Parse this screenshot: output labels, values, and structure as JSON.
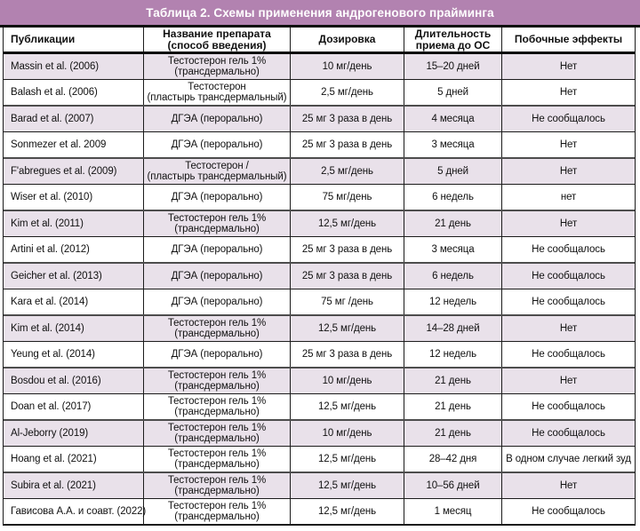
{
  "title": "Таблица 2. Схемы применения андрогенового прайминга",
  "colors": {
    "title_bar_background": "#b282b0",
    "title_text": "#ffffff",
    "shaded_row_background": "#e9e1ea",
    "plain_row_background": "#ffffff",
    "border_dark": "#1c1c1c",
    "border_medium": "#4d4d4d"
  },
  "table": {
    "columns": [
      {
        "line1": "Публикации",
        "line2": ""
      },
      {
        "line1": "Название препарата",
        "line2": "(способ введения)"
      },
      {
        "line1": "Дозировка",
        "line2": ""
      },
      {
        "line1": "Длительность",
        "line2": "приема до ОС"
      },
      {
        "line1": "Побочные эффекты",
        "line2": ""
      }
    ],
    "rows": [
      {
        "publication": "Massin et al. (2006)",
        "drug_line1": "Тестостерон гель 1%",
        "drug_line2": "(трансдермально)",
        "dosage": "10 мг/день",
        "duration": "15–20 дней",
        "side_effects": "Нет"
      },
      {
        "publication": "Balash et al. (2006)",
        "drug_line1": "Тестостерон",
        "drug_line2": "(пластырь трансдермальный)",
        "dosage": "2,5 мг/день",
        "duration": "5 дней",
        "side_effects": "Нет"
      },
      {
        "publication": "Barad et al. (2007)",
        "drug_line1": "ДГЭА (перорально)",
        "drug_line2": "",
        "dosage": "25 мг 3 раза в день",
        "duration": "4 месяца",
        "side_effects": "Не сообщалось"
      },
      {
        "publication": "Sonmezer et al. 2009",
        "drug_line1": "ДГЭА (перорально)",
        "drug_line2": "",
        "dosage": "25 мг 3 раза в день",
        "duration": "3 месяца",
        "side_effects": "Нет"
      },
      {
        "publication": "F'abregues et al. (2009)",
        "drug_line1": "Тестостерон /",
        "drug_line2": "(пластырь трансдермальный)",
        "dosage": "2,5 мг/день",
        "duration": "5 дней",
        "side_effects": "Нет"
      },
      {
        "publication": "Wiser et al. (2010)",
        "drug_line1": "ДГЭА (перорально)",
        "drug_line2": "",
        "dosage": "75 мг/день",
        "duration": "6 недель",
        "side_effects": "нет"
      },
      {
        "publication": "Kim et al. (2011)",
        "drug_line1": "Тестостерон гель 1%",
        "drug_line2": "(трансдермально)",
        "dosage": "12,5 мг/день",
        "duration": "21 день",
        "side_effects": "Нет"
      },
      {
        "publication": "Artini et al. (2012)",
        "drug_line1": "ДГЭА (перорально)",
        "drug_line2": "",
        "dosage": "25 мг 3 раза в день",
        "duration": "3 месяца",
        "side_effects": "Не сообщалось"
      },
      {
        "publication": "Geicher et al. (2013)",
        "drug_line1": "ДГЭА (перорально)",
        "drug_line2": "",
        "dosage": "25 мг 3 раза в день",
        "duration": "6 недель",
        "side_effects": "Не сообщалось"
      },
      {
        "publication": "Kara et al. (2014)",
        "drug_line1": "ДГЭА (перорально)",
        "drug_line2": "",
        "dosage": "75 мг /день",
        "duration": "12 недель",
        "side_effects": "Не сообщалось"
      },
      {
        "publication": "Kim et al. (2014)",
        "drug_line1": "Тестостерон гель 1%",
        "drug_line2": "(трансдермально)",
        "dosage": "12,5 мг/день",
        "duration": "14–28 дней",
        "side_effects": "Нет"
      },
      {
        "publication": "Yeung et al. (2014)",
        "drug_line1": "ДГЭА (перорально)",
        "drug_line2": "",
        "dosage": "25 мг 3 раза в день",
        "duration": "12 недель",
        "side_effects": "Не сообщалось"
      },
      {
        "publication": "Bosdou et al. (2016)",
        "drug_line1": "Тестостерон гель 1%",
        "drug_line2": "(трансдермально)",
        "dosage": "10 мг/день",
        "duration": "21 день",
        "side_effects": "Нет"
      },
      {
        "publication": "Doan et al. (2017)",
        "drug_line1": "Тестостерон гель 1%",
        "drug_line2": "(трансдермально)",
        "dosage": "12,5 мг/день",
        "duration": "21 день",
        "side_effects": "Не сообщалось"
      },
      {
        "publication": "Al-Jeborry (2019)",
        "drug_line1": "Тестостерон гель 1%",
        "drug_line2": "(трансдермально)",
        "dosage": "10 мг/день",
        "duration": "21 день",
        "side_effects": "Не сообщалось"
      },
      {
        "publication": "Hoang et al. (2021)",
        "drug_line1": "Тестостерон гель 1%",
        "drug_line2": "(трансдермально)",
        "dosage": "12,5 мг/день",
        "duration": "28–42 дня",
        "side_effects": "В одном случае легкий зуд"
      },
      {
        "publication": "Subira et al. (2021)",
        "drug_line1": "Тестостерон гель 1%",
        "drug_line2": "(трансдермально)",
        "dosage": "12,5 мг/день",
        "duration": "10–56 дней",
        "side_effects": "Нет"
      },
      {
        "publication": "Гависова А.А. и соавт. (2022)",
        "drug_line1": "Тестостерон гель 1%",
        "drug_line2": "(трансдермально)",
        "dosage": "12,5 мг/день",
        "duration": "1 месяц",
        "side_effects": "Не сообщалось"
      }
    ]
  }
}
